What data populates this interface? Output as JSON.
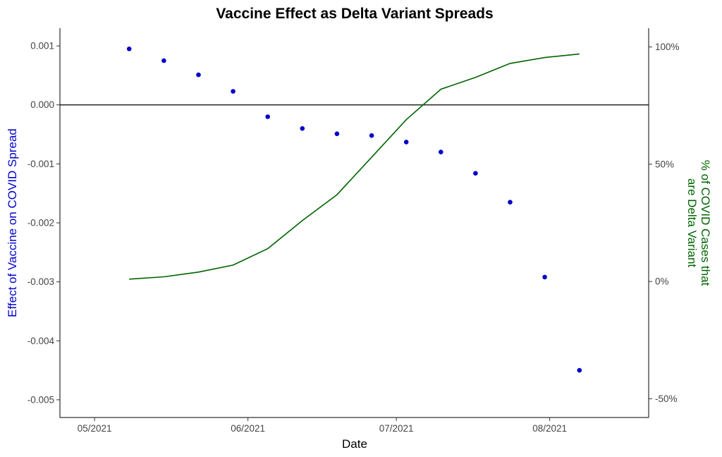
{
  "chart_data": {
    "type": "scatter",
    "title": "Vaccine Effect as Delta Variant Spreads",
    "xlabel": "Date",
    "ylabel_left": "Effect of Vaccine on COVID Spread",
    "ylabel_right_line1": "% of COVID Cases that",
    "ylabel_right_line2": "are Delta Variant",
    "x_ticks": [
      "05/2021",
      "06/2021",
      "07/2021",
      "08/2021"
    ],
    "x_tick_dates": [
      "2021-05-01",
      "2021-06-01",
      "2021-07-01",
      "2021-08-01"
    ],
    "xlim": [
      "2021-04-24",
      "2021-08-21"
    ],
    "y_left_ticks": [
      "0.001",
      "0.000",
      "-0.001",
      "-0.002",
      "-0.003",
      "-0.004",
      "-0.005"
    ],
    "y_left_tick_values": [
      0.001,
      0.0,
      -0.001,
      -0.002,
      -0.003,
      -0.004,
      -0.005
    ],
    "ylim_left": [
      -0.0053,
      0.0013
    ],
    "y_right_ticks": [
      "100%",
      "50%",
      "0%",
      "-50%"
    ],
    "y_right_tick_values": [
      1.0,
      0.5,
      0.0,
      -0.5
    ],
    "ylim_right": [
      -0.58,
      1.08
    ],
    "reference_line_left_y": 0.0,
    "grid": false,
    "series": [
      {
        "axis": "left",
        "mark": "point",
        "color": "#0000CC",
        "points": [
          {
            "x": "2021-05-08",
            "y": 0.00095
          },
          {
            "x": "2021-05-15",
            "y": 0.00075
          },
          {
            "x": "2021-05-22",
            "y": 0.00051
          },
          {
            "x": "2021-05-29",
            "y": 0.00023
          },
          {
            "x": "2021-06-05",
            "y": -0.0002
          },
          {
            "x": "2021-06-12",
            "y": -0.0004
          },
          {
            "x": "2021-06-19",
            "y": -0.00049
          },
          {
            "x": "2021-06-26",
            "y": -0.00052
          },
          {
            "x": "2021-07-03",
            "y": -0.00063
          },
          {
            "x": "2021-07-10",
            "y": -0.0008
          },
          {
            "x": "2021-07-17",
            "y": -0.00116
          },
          {
            "x": "2021-07-24",
            "y": -0.00165
          },
          {
            "x": "2021-07-31",
            "y": -0.00292
          },
          {
            "x": "2021-08-07",
            "y": -0.0045
          }
        ]
      },
      {
        "axis": "right",
        "mark": "line",
        "color": "#006400",
        "points": [
          {
            "x": "2021-05-08",
            "y": 0.01
          },
          {
            "x": "2021-05-15",
            "y": 0.02
          },
          {
            "x": "2021-05-22",
            "y": 0.04
          },
          {
            "x": "2021-05-29",
            "y": 0.07
          },
          {
            "x": "2021-06-05",
            "y": 0.14
          },
          {
            "x": "2021-06-12",
            "y": 0.26
          },
          {
            "x": "2021-06-19",
            "y": 0.37
          },
          {
            "x": "2021-06-26",
            "y": 0.53
          },
          {
            "x": "2021-07-03",
            "y": 0.69
          },
          {
            "x": "2021-07-10",
            "y": 0.82
          },
          {
            "x": "2021-07-17",
            "y": 0.87
          },
          {
            "x": "2021-07-24",
            "y": 0.93
          },
          {
            "x": "2021-07-31",
            "y": 0.955
          },
          {
            "x": "2021-08-07",
            "y": 0.97
          }
        ]
      }
    ]
  }
}
